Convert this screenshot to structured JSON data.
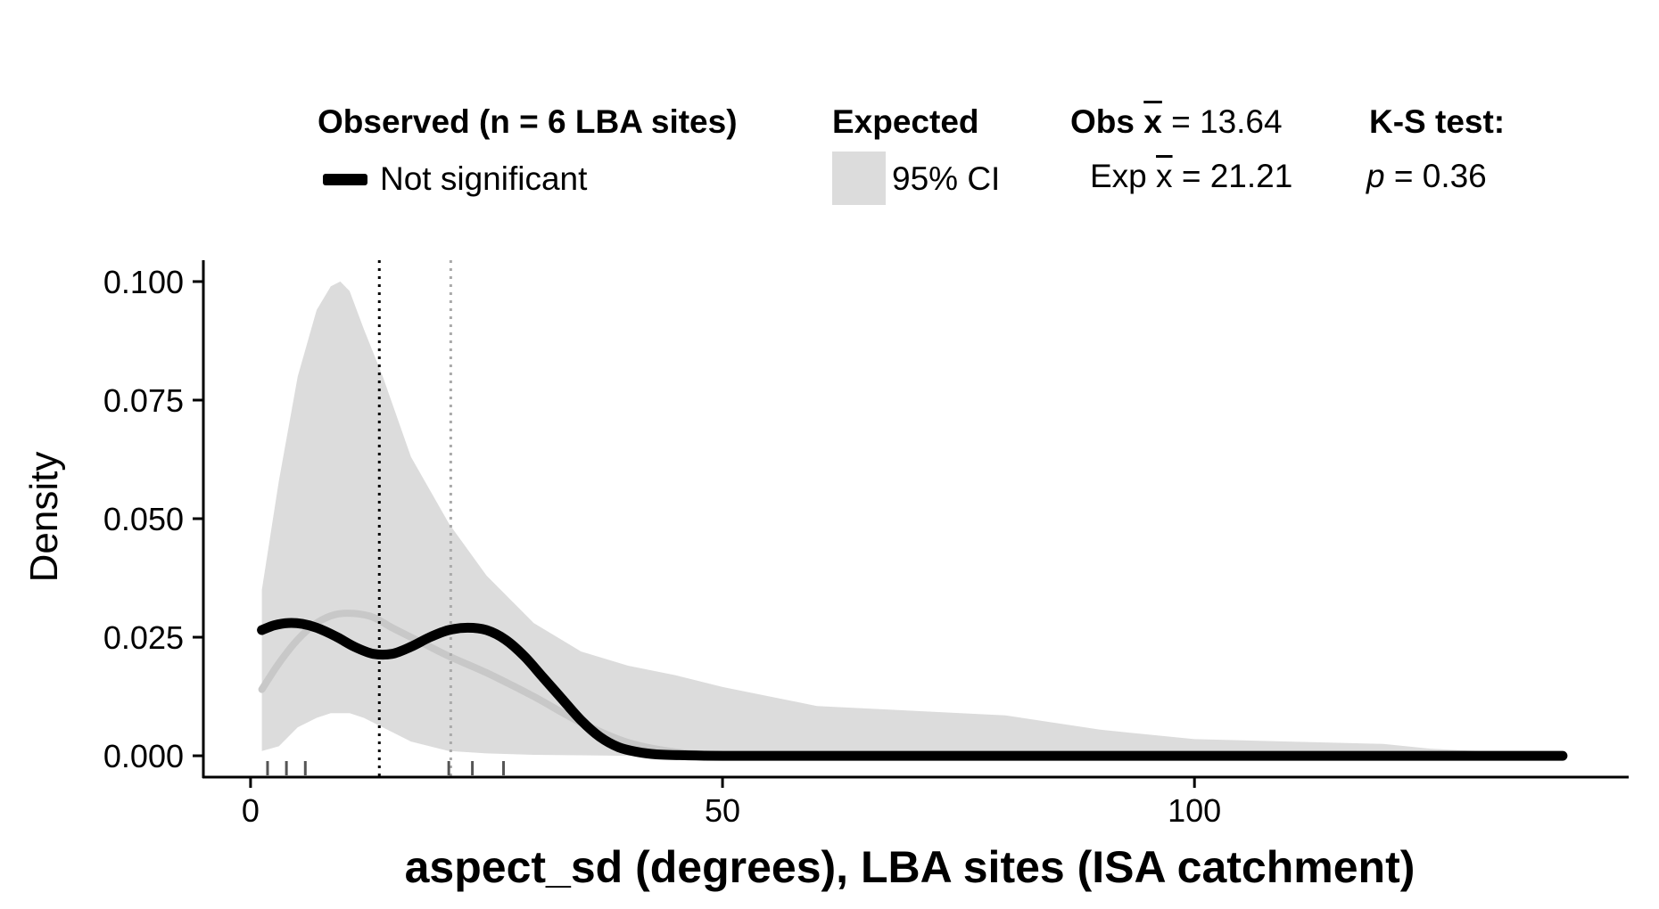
{
  "legend": {
    "observed_title": "Observed (n = 6 LBA sites)",
    "observed_item": "Not significant",
    "expected_title": "Expected",
    "expected_item": "95% CI",
    "obs_mean_label": "Obs",
    "obs_mean_symbol": "x",
    "obs_mean_value": "= 13.64",
    "exp_mean_label": "Exp",
    "exp_mean_symbol": "x",
    "exp_mean_value": "= 21.21",
    "ks_title": "K-S test:",
    "ks_p_symbol": "p",
    "ks_p_value": "= 0.36"
  },
  "chart_data": {
    "type": "area",
    "title": "",
    "xlabel": "aspect_sd (degrees), LBA sites (ISA catchment)",
    "ylabel": "Density",
    "xlim": [
      -5,
      146
    ],
    "ylim": [
      -0.0045,
      0.1045
    ],
    "x_ticks": [
      0,
      50,
      100
    ],
    "y_ticks": [
      0.0,
      0.025,
      0.05,
      0.075,
      0.1
    ],
    "y_tick_labels": [
      "0.000",
      "0.025",
      "0.050",
      "0.075",
      "0.100"
    ],
    "grid": false,
    "colors": {
      "observed": "#000000",
      "expected_line": "#c8c8c8",
      "ci_band": "#dcdcdc",
      "obs_mean_line": "#000000",
      "exp_mean_line": "#aaaaaa"
    },
    "ci_band": {
      "x": [
        1.2,
        3,
        5,
        7,
        8.5,
        9.5,
        10.5,
        12,
        14,
        17,
        21,
        25,
        30,
        35,
        40,
        45,
        50,
        60,
        70,
        80,
        90,
        100,
        110,
        120,
        125,
        130,
        135,
        139
      ],
      "upper": [
        0.035,
        0.058,
        0.08,
        0.094,
        0.099,
        0.1,
        0.098,
        0.09,
        0.08,
        0.063,
        0.049,
        0.038,
        0.028,
        0.022,
        0.019,
        0.017,
        0.0145,
        0.0105,
        0.0095,
        0.0085,
        0.0055,
        0.0035,
        0.003,
        0.0025,
        0.0015,
        0.001,
        0.0003,
        0.0
      ],
      "lower": [
        0.001,
        0.002,
        0.006,
        0.008,
        0.009,
        0.009,
        0.009,
        0.008,
        0.006,
        0.003,
        0.001,
        0.0005,
        0.0002,
        0.0001,
        0.0,
        0.0,
        0.0,
        0.0,
        0.0,
        0.0,
        0.0,
        0.0,
        0.0,
        0.0,
        0.0,
        0.0,
        0.0,
        0.0
      ]
    },
    "series": [
      {
        "name": "Not significant",
        "x": [
          1.2,
          2.5,
          4,
          5.5,
          7,
          9,
          11,
          13,
          15,
          17,
          19,
          21,
          23,
          25,
          27,
          29,
          31,
          33,
          35,
          37,
          39,
          41,
          43,
          46,
          50,
          60,
          80,
          100,
          120,
          139
        ],
        "y": [
          0.0265,
          0.0275,
          0.028,
          0.0278,
          0.027,
          0.0252,
          0.023,
          0.0215,
          0.0215,
          0.023,
          0.025,
          0.0265,
          0.027,
          0.0265,
          0.0245,
          0.021,
          0.0165,
          0.012,
          0.0075,
          0.004,
          0.0018,
          0.0008,
          0.0003,
          0.0001,
          0.0,
          0.0,
          0.0,
          0.0,
          0.0,
          0.0
        ]
      },
      {
        "x": [
          1.2,
          3,
          5,
          7,
          9,
          11,
          13,
          15,
          18,
          21,
          25,
          30,
          35,
          40,
          45,
          50
        ],
        "y": [
          0.014,
          0.0195,
          0.0245,
          0.028,
          0.0298,
          0.03,
          0.0292,
          0.027,
          0.024,
          0.021,
          0.0175,
          0.0125,
          0.007,
          0.0028,
          0.0008,
          0.0002
        ]
      }
    ],
    "obs_mean_x": 13.64,
    "exp_mean_x": 21.21,
    "rug": [
      1.8,
      3.8,
      5.8,
      21.0,
      23.5,
      26.8
    ]
  }
}
